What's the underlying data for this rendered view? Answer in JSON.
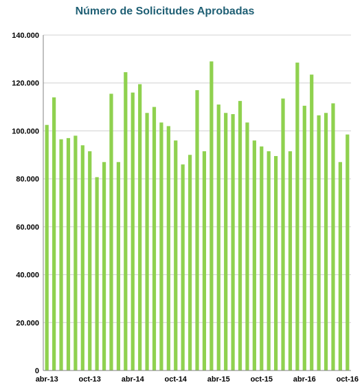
{
  "colors": {
    "bar": "#8fd14f",
    "grid": "#d0d0d0",
    "axis": "#808080",
    "title": "#1f5f74"
  },
  "chart_data": {
    "type": "bar",
    "title": "Número de Solicitudes Aprobadas",
    "xlabel": "",
    "ylabel": "",
    "ylim": [
      0,
      140000
    ],
    "grid": true,
    "legend": "none",
    "y_tick_values": [
      0,
      20000,
      40000,
      60000,
      80000,
      100000,
      120000,
      140000
    ],
    "y_tick_labels": [
      "0",
      "20.000",
      "40.000",
      "60.000",
      "80.000",
      "100.000",
      "120.000",
      "140.000"
    ],
    "categories": [
      "abr-13",
      "may-13",
      "jun-13",
      "jul-13",
      "ago-13",
      "sep-13",
      "oct-13",
      "nov-13",
      "dic-13",
      "ene-14",
      "feb-14",
      "mar-14",
      "abr-14",
      "may-14",
      "jun-14",
      "jul-14",
      "ago-14",
      "sep-14",
      "oct-14",
      "nov-14",
      "dic-14",
      "ene-15",
      "feb-15",
      "mar-15",
      "abr-15",
      "may-15",
      "jun-15",
      "jul-15",
      "ago-15",
      "sep-15",
      "oct-15",
      "nov-15",
      "dic-15",
      "ene-16",
      "feb-16",
      "mar-16",
      "abr-16",
      "may-16",
      "jun-16",
      "jul-16",
      "ago-16",
      "sep-16",
      "oct-16"
    ],
    "x_tick_labels": [
      {
        "index": 0,
        "label": "abr-13"
      },
      {
        "index": 6,
        "label": "oct-13"
      },
      {
        "index": 12,
        "label": "abr-14"
      },
      {
        "index": 18,
        "label": "oct-14"
      },
      {
        "index": 24,
        "label": "abr-15"
      },
      {
        "index": 30,
        "label": "oct-15"
      },
      {
        "index": 36,
        "label": "abr-16"
      },
      {
        "index": 42,
        "label": "oct-16"
      }
    ],
    "values": [
      102500,
      114000,
      96500,
      97000,
      98000,
      94000,
      91500,
      80700,
      87000,
      115500,
      87000,
      124500,
      116000,
      119500,
      107500,
      110000,
      103500,
      102000,
      96000,
      86000,
      90000,
      117000,
      91500,
      129000,
      111000,
      107500,
      107000,
      112500,
      103500,
      96000,
      93500,
      91500,
      89500,
      113500,
      91500,
      128500,
      110500,
      123500,
      106500,
      107500,
      111500,
      87000,
      98500
    ]
  }
}
